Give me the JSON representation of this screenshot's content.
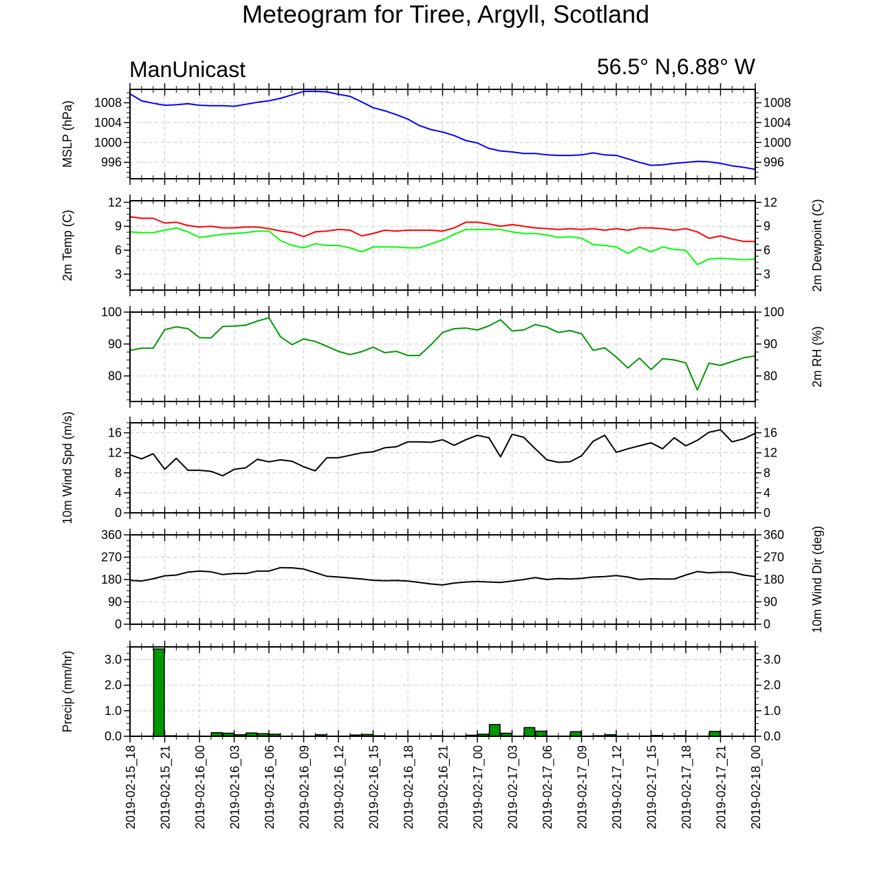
{
  "page": {
    "title": "Meteogram for Tiree, Argyll, Scotland",
    "model": "ManUnicast",
    "location": "56.5° N,6.88° W"
  },
  "time_axis": {
    "labels": [
      "2019-02-15_18",
      "2019-02-15_21",
      "2019-02-16_00",
      "2019-02-16_03",
      "2019-02-16_06",
      "2019-02-16_09",
      "2019-02-16_12",
      "2019-02-16_15",
      "2019-02-16_18",
      "2019-02-16_21",
      "2019-02-17_00",
      "2019-02-17_03",
      "2019-02-17_06",
      "2019-02-17_09",
      "2019-02-17_12",
      "2019-02-17_15",
      "2019-02-17_18",
      "2019-02-17_21",
      "2019-02-18_00"
    ],
    "hours_range": [
      0,
      54
    ]
  },
  "chart_data": [
    {
      "type": "line",
      "ylabel_left": "MSLP (hPa)",
      "ylabel_right": "",
      "ylim": [
        992.7,
        1010.7
      ],
      "yticks": [
        996,
        1000,
        1004,
        1008
      ],
      "x_hours": [
        0,
        1,
        2,
        3,
        4,
        5,
        6,
        7,
        8,
        9,
        10,
        11,
        12,
        13,
        14,
        15,
        16,
        17,
        18,
        19,
        20,
        21,
        22,
        23,
        24,
        25,
        26,
        27,
        28,
        29,
        30,
        31,
        32,
        33,
        34,
        35,
        36,
        37,
        38,
        39,
        40,
        41,
        42,
        43,
        44,
        45,
        46,
        47,
        48,
        49,
        50,
        51,
        52,
        53,
        54
      ],
      "series": [
        {
          "color": "#0000ff",
          "values": [
            1009.8,
            1008.4,
            1007.9,
            1007.5,
            1007.6,
            1007.8,
            1007.5,
            1007.4,
            1007.4,
            1007.3,
            1007.7,
            1008.1,
            1008.4,
            1008.9,
            1009.6,
            1010.3,
            1010.3,
            1010.2,
            1009.7,
            1009.3,
            1008.2,
            1007.0,
            1006.4,
            1005.6,
            1004.7,
            1003.4,
            1002.6,
            1002.1,
            1001.4,
            1000.4,
            999.9,
            998.8,
            998.3,
            998.1,
            997.8,
            997.8,
            997.5,
            997.4,
            997.4,
            997.5,
            997.9,
            997.5,
            997.4,
            996.7,
            996.0,
            995.4,
            995.5,
            995.8,
            996.0,
            996.2,
            996.1,
            995.8,
            995.3,
            995.0,
            994.6
          ]
        }
      ]
    },
    {
      "type": "line",
      "ylabel_left": "2m Temp (C)",
      "ylabel_right": "2m Dewpoint (C)",
      "ylim": [
        1,
        12.2
      ],
      "yticks": [
        3,
        6,
        9,
        12
      ],
      "x_hours": [
        0,
        1,
        2,
        3,
        4,
        5,
        6,
        7,
        8,
        9,
        10,
        11,
        12,
        13,
        14,
        15,
        16,
        17,
        18,
        19,
        20,
        21,
        22,
        23,
        24,
        25,
        26,
        27,
        28,
        29,
        30,
        31,
        32,
        33,
        34,
        35,
        36,
        37,
        38,
        39,
        40,
        41,
        42,
        43,
        44,
        45,
        46,
        47,
        48,
        49,
        50,
        51,
        52,
        53,
        54
      ],
      "series": [
        {
          "color": "#ff0000",
          "values": [
            10.2,
            10.0,
            10.0,
            9.4,
            9.5,
            9.1,
            8.9,
            9.0,
            8.8,
            8.8,
            8.9,
            8.9,
            8.7,
            8.4,
            8.2,
            7.7,
            8.3,
            8.4,
            8.6,
            8.5,
            7.8,
            8.1,
            8.5,
            8.4,
            8.5,
            8.5,
            8.5,
            8.4,
            8.8,
            9.5,
            9.5,
            9.3,
            9.0,
            9.2,
            9.0,
            8.8,
            8.7,
            8.6,
            8.7,
            8.6,
            8.7,
            8.5,
            8.7,
            8.5,
            8.8,
            8.8,
            8.7,
            8.5,
            8.7,
            8.3,
            7.5,
            7.8,
            7.4,
            7.1,
            7.1
          ]
        },
        {
          "color": "#00ff00",
          "values": [
            8.3,
            8.2,
            8.2,
            8.5,
            8.8,
            8.3,
            7.6,
            7.8,
            8.0,
            8.1,
            8.2,
            8.4,
            8.4,
            7.2,
            6.6,
            6.3,
            6.8,
            6.6,
            6.6,
            6.3,
            5.8,
            6.4,
            6.4,
            6.4,
            6.3,
            6.3,
            6.8,
            7.3,
            8.0,
            8.6,
            8.6,
            8.6,
            8.6,
            8.3,
            8.1,
            8.1,
            7.9,
            7.6,
            7.7,
            7.5,
            6.7,
            6.6,
            6.4,
            5.6,
            6.4,
            5.8,
            6.4,
            6.1,
            6.0,
            4.2,
            4.9,
            5.0,
            4.9,
            4.8,
            4.9
          ]
        }
      ]
    },
    {
      "type": "line",
      "ylabel_left": "",
      "ylabel_right": "2m RH (%)",
      "ylim": [
        72,
        100
      ],
      "yticks": [
        80,
        90,
        100
      ],
      "x_hours": [
        0,
        1,
        2,
        3,
        4,
        5,
        6,
        7,
        8,
        9,
        10,
        11,
        12,
        13,
        14,
        15,
        16,
        17,
        18,
        19,
        20,
        21,
        22,
        23,
        24,
        25,
        26,
        27,
        28,
        29,
        30,
        31,
        32,
        33,
        34,
        35,
        36,
        37,
        38,
        39,
        40,
        41,
        42,
        43,
        44,
        45,
        46,
        47,
        48,
        49,
        50,
        51,
        52,
        53,
        54
      ],
      "series": [
        {
          "color": "#009600",
          "values": [
            88,
            88.7,
            88.7,
            94.5,
            95.4,
            94.8,
            92.0,
            91.9,
            95.5,
            95.6,
            95.9,
            97.2,
            98.2,
            92.3,
            89.8,
            91.6,
            90.8,
            89.3,
            87.7,
            86.7,
            87.6,
            89.0,
            87.3,
            87.7,
            86.4,
            86.4,
            89.8,
            93.6,
            94.8,
            95.0,
            94.4,
            95.7,
            97.6,
            94.1,
            94.4,
            96.1,
            95.3,
            93.6,
            94.2,
            93.2,
            88.0,
            88.8,
            85.9,
            82.5,
            85.6,
            82.0,
            85.4,
            85.0,
            84.1,
            75.6,
            84.0,
            83.3,
            84.5,
            85.7,
            86.3
          ]
        }
      ]
    },
    {
      "type": "line",
      "ylabel_left": "10m Wind Spd (m/s)",
      "ylabel_right": "",
      "ylim": [
        0,
        18
      ],
      "yticks": [
        0,
        4,
        8,
        12,
        16
      ],
      "x_hours": [
        0,
        1,
        2,
        3,
        4,
        5,
        6,
        7,
        8,
        9,
        10,
        11,
        12,
        13,
        14,
        15,
        16,
        17,
        18,
        19,
        20,
        21,
        22,
        23,
        24,
        25,
        26,
        27,
        28,
        29,
        30,
        31,
        32,
        33,
        34,
        35,
        36,
        37,
        38,
        39,
        40,
        41,
        42,
        43,
        44,
        45,
        46,
        47,
        48,
        49,
        50,
        51,
        52,
        53,
        54
      ],
      "series": [
        {
          "color": "#000000",
          "values": [
            11.6,
            10.8,
            11.8,
            8.7,
            10.9,
            8.5,
            8.5,
            8.3,
            7.4,
            8.7,
            9.0,
            10.7,
            10.2,
            10.6,
            10.3,
            9.2,
            8.4,
            11.0,
            11.0,
            11.5,
            12.0,
            12.2,
            13.0,
            13.2,
            14.2,
            14.2,
            14.1,
            14.6,
            13.5,
            14.6,
            15.5,
            15.0,
            11.2,
            15.7,
            15.1,
            12.8,
            10.6,
            10.1,
            10.2,
            11.4,
            14.3,
            15.5,
            12.1,
            12.8,
            13.4,
            14.0,
            12.8,
            15.0,
            13.4,
            14.5,
            16.1,
            16.6,
            14.2,
            14.8,
            15.9
          ]
        }
      ]
    },
    {
      "type": "line",
      "ylabel_left": "",
      "ylabel_right": "10m Wind Dir (deg)",
      "ylim": [
        0,
        360
      ],
      "yticks": [
        0,
        90,
        180,
        270,
        360
      ],
      "x_hours": [
        0,
        1,
        2,
        3,
        4,
        5,
        6,
        7,
        8,
        9,
        10,
        11,
        12,
        13,
        14,
        15,
        16,
        17,
        18,
        19,
        20,
        21,
        22,
        23,
        24,
        25,
        26,
        27,
        28,
        29,
        30,
        31,
        32,
        33,
        34,
        35,
        36,
        37,
        38,
        39,
        40,
        41,
        42,
        43,
        44,
        45,
        46,
        47,
        48,
        49,
        50,
        51,
        52,
        53,
        54
      ],
      "series": [
        {
          "color": "#000000",
          "values": [
            177,
            174,
            183,
            195,
            198,
            210,
            214,
            211,
            200,
            204,
            204,
            214,
            214,
            228,
            227,
            222,
            208,
            193,
            190,
            186,
            182,
            177,
            175,
            176,
            174,
            168,
            162,
            158,
            166,
            170,
            172,
            170,
            168,
            174,
            180,
            188,
            180,
            184,
            182,
            185,
            190,
            192,
            196,
            190,
            180,
            183,
            182,
            182,
            198,
            212,
            207,
            210,
            209,
            198,
            192
          ]
        }
      ]
    },
    {
      "type": "bar",
      "ylabel_left": "Precip (mm/hr)",
      "ylabel_right": "",
      "ylim": [
        0,
        3.5
      ],
      "yticks": [
        0.0,
        1.0,
        2.0,
        3.0
      ],
      "ytick_labels": [
        "0.0",
        "1.0",
        "2.0",
        "3.0"
      ],
      "bar_color": "#009600",
      "x_hours": [
        0,
        1,
        2,
        3,
        4,
        5,
        6,
        7,
        8,
        9,
        10,
        11,
        12,
        13,
        14,
        15,
        16,
        17,
        18,
        19,
        20,
        21,
        22,
        23,
        24,
        25,
        26,
        27,
        28,
        29,
        30,
        31,
        32,
        33,
        34,
        35,
        36,
        37,
        38,
        39,
        40,
        41,
        42,
        43,
        44,
        45,
        46,
        47,
        48,
        49,
        50,
        51,
        52,
        53
      ],
      "values": [
        0,
        0,
        3.42,
        0.02,
        0,
        0,
        0,
        0.14,
        0.12,
        0.06,
        0.13,
        0.1,
        0.08,
        0,
        0,
        0,
        0.06,
        0,
        0,
        0.05,
        0.07,
        0.02,
        0,
        0,
        0,
        0,
        0.02,
        0,
        0,
        0.04,
        0.08,
        0.46,
        0.12,
        0,
        0.34,
        0.2,
        0,
        0,
        0.18,
        0,
        0.02,
        0.06,
        0,
        0,
        0,
        0.03,
        0,
        0.02,
        0,
        0,
        0.19,
        0,
        0,
        0
      ]
    }
  ]
}
